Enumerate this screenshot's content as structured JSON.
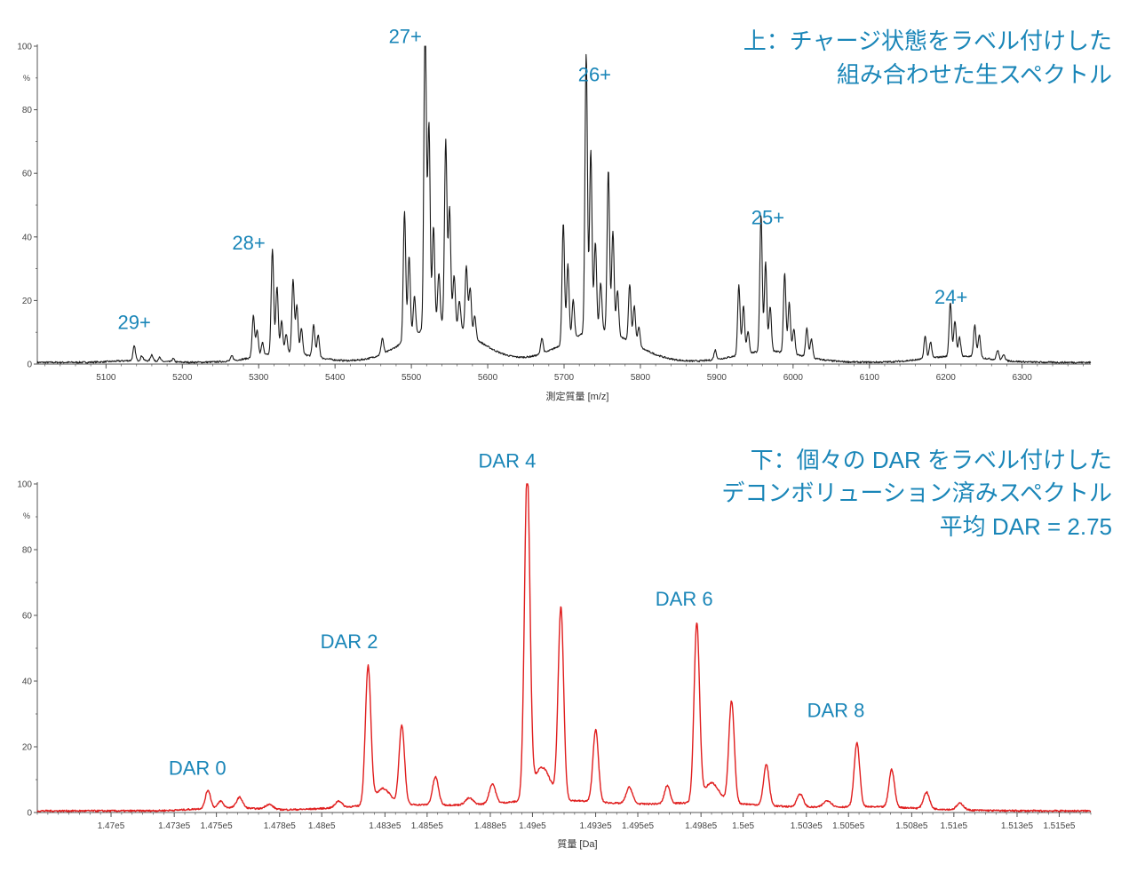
{
  "colors": {
    "accent_text": "#1a86b8",
    "top_line": "#1a1a1a",
    "bottom_line": "#e01e1e",
    "axis": "#555555"
  },
  "chart_data": [
    {
      "type": "line",
      "name": "raw-spectrum",
      "xlabel": "測定質量 [m/z]",
      "ylabel": "%",
      "xlim": [
        5010,
        6390
      ],
      "ylim": [
        0,
        100
      ],
      "x_ticks": [
        5100,
        5200,
        5300,
        5400,
        5500,
        5600,
        5700,
        5800,
        5900,
        6000,
        6100,
        6200,
        6300
      ],
      "y_ticks": [
        0,
        20,
        40,
        60,
        80,
        100
      ],
      "annotation_lines": [
        "上：チャージ状態をラベル付けした",
        "組み合わせた生スペクトル"
      ],
      "peak_labels": [
        {
          "text": "29+",
          "x": 5137,
          "y": 11
        },
        {
          "text": "28+",
          "x": 5287,
          "y": 36
        },
        {
          "text": "27+",
          "x": 5492,
          "y": 101
        },
        {
          "text": "26+",
          "x": 5740,
          "y": 89
        },
        {
          "text": "25+",
          "x": 5967,
          "y": 44
        },
        {
          "text": "24+",
          "x": 6207,
          "y": 19
        }
      ],
      "peaks": [
        {
          "x": 5137,
          "y": 4.5
        },
        {
          "x": 5147,
          "y": 1.5
        },
        {
          "x": 5160,
          "y": 2
        },
        {
          "x": 5170,
          "y": 1.2
        },
        {
          "x": 5188,
          "y": 1
        },
        {
          "x": 5265,
          "y": 1.5
        },
        {
          "x": 5293,
          "y": 13
        },
        {
          "x": 5298,
          "y": 8
        },
        {
          "x": 5305,
          "y": 4
        },
        {
          "x": 5318,
          "y": 33
        },
        {
          "x": 5324,
          "y": 21
        },
        {
          "x": 5330,
          "y": 10
        },
        {
          "x": 5336,
          "y": 6
        },
        {
          "x": 5345,
          "y": 23
        },
        {
          "x": 5350,
          "y": 15
        },
        {
          "x": 5356,
          "y": 8
        },
        {
          "x": 5372,
          "y": 10
        },
        {
          "x": 5378,
          "y": 7
        },
        {
          "x": 5462,
          "y": 5
        },
        {
          "x": 5491,
          "y": 41
        },
        {
          "x": 5497,
          "y": 26
        },
        {
          "x": 5504,
          "y": 12
        },
        {
          "x": 5518,
          "y": 100
        },
        {
          "x": 5523,
          "y": 64
        },
        {
          "x": 5529,
          "y": 31
        },
        {
          "x": 5536,
          "y": 16
        },
        {
          "x": 5545,
          "y": 58
        },
        {
          "x": 5550,
          "y": 37
        },
        {
          "x": 5556,
          "y": 16
        },
        {
          "x": 5563,
          "y": 9
        },
        {
          "x": 5572,
          "y": 21
        },
        {
          "x": 5577,
          "y": 15
        },
        {
          "x": 5583,
          "y": 7
        },
        {
          "x": 5671,
          "y": 5
        },
        {
          "x": 5699,
          "y": 38
        },
        {
          "x": 5705,
          "y": 24
        },
        {
          "x": 5712,
          "y": 12
        },
        {
          "x": 5729,
          "y": 88
        },
        {
          "x": 5735,
          "y": 57
        },
        {
          "x": 5741,
          "y": 28
        },
        {
          "x": 5748,
          "y": 15
        },
        {
          "x": 5758,
          "y": 51
        },
        {
          "x": 5764,
          "y": 32
        },
        {
          "x": 5770,
          "y": 14
        },
        {
          "x": 5786,
          "y": 18
        },
        {
          "x": 5792,
          "y": 12
        },
        {
          "x": 5798,
          "y": 6
        },
        {
          "x": 5898,
          "y": 3
        },
        {
          "x": 5929,
          "y": 22
        },
        {
          "x": 5935,
          "y": 15
        },
        {
          "x": 5941,
          "y": 7
        },
        {
          "x": 5958,
          "y": 43
        },
        {
          "x": 5964,
          "y": 28
        },
        {
          "x": 5970,
          "y": 14
        },
        {
          "x": 5989,
          "y": 25
        },
        {
          "x": 5995,
          "y": 16
        },
        {
          "x": 6001,
          "y": 8
        },
        {
          "x": 6018,
          "y": 9
        },
        {
          "x": 6024,
          "y": 6
        },
        {
          "x": 6173,
          "y": 7
        },
        {
          "x": 6180,
          "y": 5
        },
        {
          "x": 6206,
          "y": 17
        },
        {
          "x": 6212,
          "y": 11
        },
        {
          "x": 6218,
          "y": 6
        },
        {
          "x": 6238,
          "y": 10
        },
        {
          "x": 6244,
          "y": 7
        },
        {
          "x": 6268,
          "y": 3
        },
        {
          "x": 6276,
          "y": 2
        }
      ],
      "humps": [
        {
          "x": 5140,
          "y": 0.6,
          "w": 28
        },
        {
          "x": 5335,
          "y": 3,
          "w": 38
        },
        {
          "x": 5540,
          "y": 12,
          "w": 45
        },
        {
          "x": 5745,
          "y": 10,
          "w": 45
        },
        {
          "x": 5968,
          "y": 3.5,
          "w": 42
        },
        {
          "x": 6215,
          "y": 2,
          "w": 40
        }
      ]
    },
    {
      "type": "line",
      "name": "deconvoluted-spectrum",
      "xlabel": "質量 [Da]",
      "ylabel": "%",
      "xlim": [
        146650,
        151650
      ],
      "ylim": [
        0,
        100
      ],
      "x_tick_values": [
        147000,
        147300,
        147500,
        147800,
        148000,
        148300,
        148500,
        148800,
        149000,
        149300,
        149500,
        149800,
        150000,
        150300,
        150500,
        150800,
        151000,
        151300,
        151500
      ],
      "x_tick_labels": [
        "1.47e5",
        "1.473e5",
        "1.475e5",
        "1.478e5",
        "1.48e5",
        "1.483e5",
        "1.485e5",
        "1.488e5",
        "1.49e5",
        "1.493e5",
        "1.495e5",
        "1.498e5",
        "1.5e5",
        "1.503e5",
        "1.505e5",
        "1.508e5",
        "1.51e5",
        "1.513e5",
        "1.515e5"
      ],
      "y_ticks": [
        0,
        20,
        40,
        60,
        80,
        100
      ],
      "annotation_lines": [
        "下：個々の DAR をラベル付けした",
        "デコンボリューション済みスペクトル",
        "平均 DAR = 2.75"
      ],
      "peak_labels": [
        {
          "text": "DAR 0",
          "x": 147410,
          "y": 11.5
        },
        {
          "text": "DAR 2",
          "x": 148130,
          "y": 50
        },
        {
          "text": "DAR 4",
          "x": 148880,
          "y": 105
        },
        {
          "text": "DAR 6",
          "x": 149720,
          "y": 63
        },
        {
          "text": "DAR 8",
          "x": 150440,
          "y": 29
        }
      ],
      "peaks": [
        {
          "x": 147460,
          "y": 5.5,
          "w": 12
        },
        {
          "x": 147520,
          "y": 2,
          "w": 12
        },
        {
          "x": 147610,
          "y": 3.2,
          "w": 14
        },
        {
          "x": 147750,
          "y": 1.5,
          "w": 18
        },
        {
          "x": 148080,
          "y": 2,
          "w": 15
        },
        {
          "x": 148220,
          "y": 42,
          "w": 13
        },
        {
          "x": 148380,
          "y": 24,
          "w": 13
        },
        {
          "x": 148540,
          "y": 8.5,
          "w": 14
        },
        {
          "x": 148700,
          "y": 2,
          "w": 18
        },
        {
          "x": 148810,
          "y": 6,
          "w": 15
        },
        {
          "x": 148975,
          "y": 99,
          "w": 13
        },
        {
          "x": 149135,
          "y": 58,
          "w": 13
        },
        {
          "x": 149300,
          "y": 22,
          "w": 13
        },
        {
          "x": 149460,
          "y": 5,
          "w": 15
        },
        {
          "x": 149640,
          "y": 5.5,
          "w": 13
        },
        {
          "x": 149780,
          "y": 54,
          "w": 13
        },
        {
          "x": 149945,
          "y": 31,
          "w": 13
        },
        {
          "x": 150110,
          "y": 12.5,
          "w": 13
        },
        {
          "x": 150270,
          "y": 4,
          "w": 15
        },
        {
          "x": 150400,
          "y": 2,
          "w": 18
        },
        {
          "x": 150540,
          "y": 19.5,
          "w": 13
        },
        {
          "x": 150705,
          "y": 11.5,
          "w": 13
        },
        {
          "x": 150870,
          "y": 5,
          "w": 14
        },
        {
          "x": 151030,
          "y": 2,
          "w": 16
        },
        {
          "x": 149045,
          "y": 10,
          "w": 40
        },
        {
          "x": 149850,
          "y": 6,
          "w": 35
        },
        {
          "x": 148290,
          "y": 5,
          "w": 35
        }
      ],
      "humps": [
        {
          "x": 147550,
          "y": 1.0,
          "w": 140
        },
        {
          "x": 148350,
          "y": 1.8,
          "w": 260
        },
        {
          "x": 149100,
          "y": 3.2,
          "w": 280
        },
        {
          "x": 149850,
          "y": 2.4,
          "w": 260
        },
        {
          "x": 150600,
          "y": 1.2,
          "w": 260
        }
      ]
    }
  ]
}
